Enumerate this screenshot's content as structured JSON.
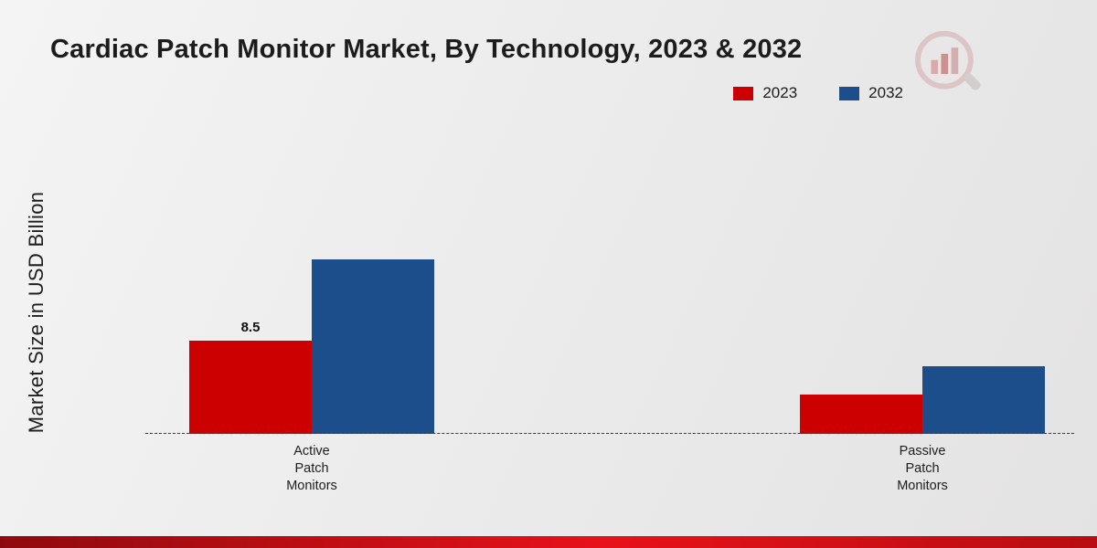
{
  "title": "Cardiac Patch Monitor Market, By Technology, 2023 & 2032",
  "chart_data": {
    "type": "bar",
    "categories": [
      "Active Patch Monitors",
      "Passive Patch Monitors"
    ],
    "series": [
      {
        "name": "2023",
        "color": "#cc0001",
        "values": [
          8.5,
          3.6
        ],
        "labels": [
          "8.5",
          null
        ]
      },
      {
        "name": "2032",
        "color": "#1b4e8b",
        "values": [
          15.9,
          6.2
        ],
        "labels": [
          null,
          null
        ]
      }
    ],
    "title": "Cardiac Patch Monitor Market, By Technology, 2023 & 2032",
    "xlabel": "",
    "ylabel": "Market Size in USD Billion",
    "ylim": [
      0,
      25
    ],
    "grid": false,
    "legend_position": "top-right",
    "baseline_style": "dashed"
  },
  "legend": {
    "items": [
      {
        "label": "2023",
        "color": "#cc0001"
      },
      {
        "label": "2032",
        "color": "#1b4e8b"
      }
    ]
  },
  "logo": {
    "icon": "magnifier-bar-chart-logo"
  },
  "accent": {
    "bottom_bar_colors": [
      "#8f0a0e",
      "#e8111a",
      "#b80d12"
    ]
  }
}
